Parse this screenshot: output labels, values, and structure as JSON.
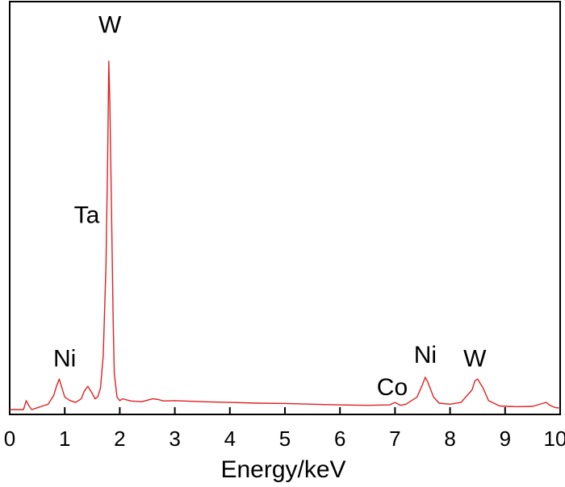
{
  "chart_data": {
    "type": "line",
    "title": "",
    "xlabel": "Energy/keV",
    "ylabel": "",
    "xlim": [
      0,
      10
    ],
    "ylim": [
      0,
      1.04
    ],
    "x_ticks": [
      "0",
      "1",
      "2",
      "3",
      "4",
      "5",
      "6",
      "7",
      "8",
      "9",
      "10"
    ],
    "grid": false,
    "series_color": "#e02020",
    "series": [
      {
        "x": [
          0.0,
          0.25,
          0.3,
          0.35,
          0.4,
          0.5,
          0.6,
          0.7,
          0.8,
          0.85,
          0.9,
          0.95,
          1.0,
          1.1,
          1.2,
          1.3,
          1.35,
          1.42,
          1.5,
          1.55,
          1.6,
          1.65,
          1.7,
          1.75,
          1.78,
          1.8,
          1.82,
          1.85,
          1.88,
          1.9,
          1.95,
          2.0,
          2.05,
          2.1,
          2.2,
          2.4,
          2.6,
          2.7,
          2.8,
          3.0,
          3.5,
          4.0,
          4.5,
          5.0,
          5.5,
          6.0,
          6.5,
          6.9,
          7.0,
          7.1,
          7.2,
          7.4,
          7.5,
          7.55,
          7.6,
          7.7,
          7.8,
          8.0,
          8.2,
          8.4,
          8.45,
          8.5,
          8.6,
          8.7,
          8.9,
          9.2,
          9.5,
          9.7,
          9.75,
          9.8,
          9.9,
          10.0
        ],
        "y": [
          0.0,
          0.0,
          0.025,
          0.01,
          0.0,
          0.005,
          0.01,
          0.015,
          0.04,
          0.065,
          0.085,
          0.06,
          0.035,
          0.025,
          0.02,
          0.03,
          0.05,
          0.065,
          0.045,
          0.03,
          0.035,
          0.06,
          0.15,
          0.4,
          0.7,
          0.97,
          0.85,
          0.55,
          0.25,
          0.1,
          0.035,
          0.025,
          0.03,
          0.028,
          0.024,
          0.022,
          0.03,
          0.028,
          0.024,
          0.025,
          0.022,
          0.02,
          0.018,
          0.017,
          0.015,
          0.013,
          0.012,
          0.013,
          0.02,
          0.012,
          0.015,
          0.035,
          0.07,
          0.09,
          0.075,
          0.035,
          0.018,
          0.015,
          0.02,
          0.055,
          0.08,
          0.085,
          0.06,
          0.025,
          0.01,
          0.008,
          0.009,
          0.018,
          0.02,
          0.013,
          0.006,
          0.004
        ]
      }
    ],
    "annotations": [
      {
        "text": "W",
        "x": 1.82,
        "y": 1.05
      },
      {
        "text": "Ta",
        "x": 1.4,
        "y": 0.52
      },
      {
        "text": "Ni",
        "x": 1.0,
        "y": 0.12
      },
      {
        "text": "Co",
        "x": 6.95,
        "y": 0.04
      },
      {
        "text": "Ni",
        "x": 7.55,
        "y": 0.13
      },
      {
        "text": "W",
        "x": 8.45,
        "y": 0.12
      }
    ]
  }
}
